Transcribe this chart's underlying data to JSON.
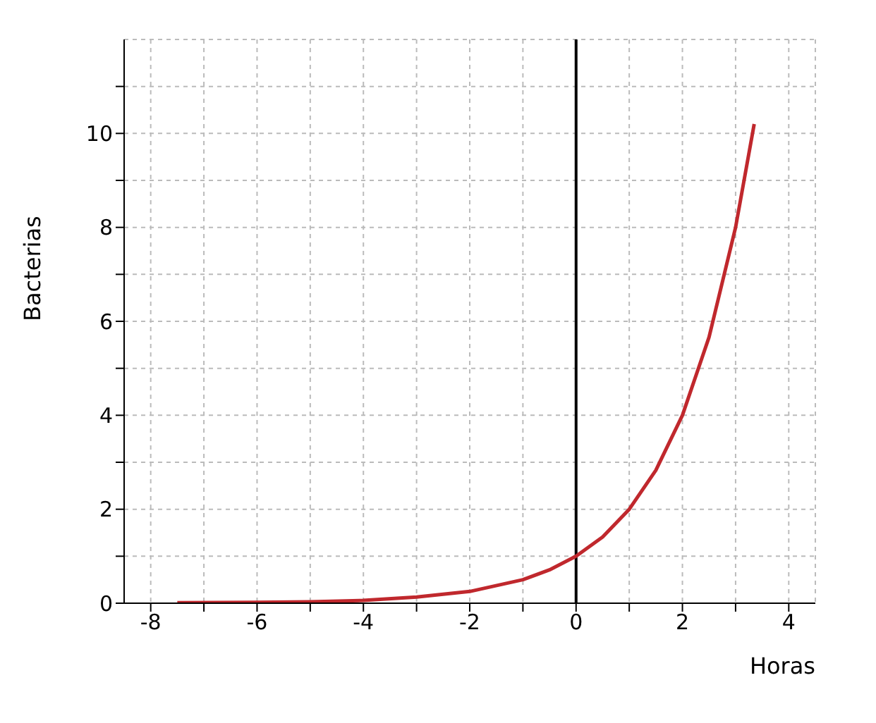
{
  "chart_data": {
    "type": "line",
    "xlabel": "Horas",
    "ylabel": "Bacterias",
    "x": [
      -7.5,
      -6,
      -5,
      -4,
      -3,
      -2,
      -1,
      -0.5,
      0,
      0.5,
      1,
      1.5,
      2,
      2.5,
      3,
      3.35
    ],
    "series": [
      {
        "color": "#c0282d",
        "values": [
          0.01,
          0.02,
          0.03,
          0.06,
          0.13,
          0.25,
          0.5,
          0.71,
          1,
          1.41,
          2,
          2.83,
          4,
          5.66,
          8,
          10.2
        ]
      }
    ],
    "xlim": [
      -8.5,
      4.5
    ],
    "ylim": [
      0,
      12
    ],
    "xticks": [
      -8,
      {
        "value": -7,
        "label": null
      },
      -6,
      {
        "value": -5,
        "label": null
      },
      -4,
      {
        "value": -3,
        "label": null
      },
      -2,
      {
        "value": -1,
        "label": null
      },
      0,
      {
        "value": 1,
        "label": null
      },
      2,
      {
        "value": 3,
        "label": null
      },
      4
    ],
    "yticks": [
      0,
      {
        "value": 1,
        "label": null
      },
      2,
      {
        "value": 3,
        "label": null
      },
      4,
      {
        "value": 5,
        "label": null
      },
      6,
      {
        "value": 7,
        "label": null
      },
      8,
      {
        "value": 9,
        "label": null
      },
      10,
      {
        "value": 11,
        "label": null
      }
    ],
    "ref_lines": [
      {
        "axis": "x",
        "value": 0,
        "color": "#000000"
      }
    ],
    "grid": true,
    "marker": "none",
    "line_style": "solid"
  }
}
